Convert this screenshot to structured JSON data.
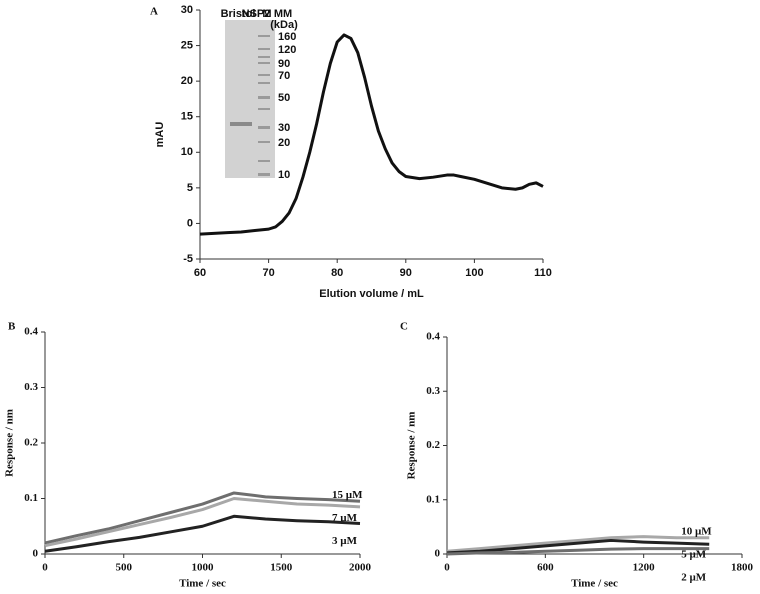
{
  "chart_data": [
    {
      "type": "line",
      "panel_label": "A",
      "xlabel": "Elution volume / mL",
      "ylabel": "mAU",
      "color": "#111111",
      "x": [
        60,
        62,
        64,
        66,
        68,
        70,
        71,
        72,
        73,
        74,
        75,
        76,
        77,
        78,
        79,
        80,
        81,
        82,
        83,
        84,
        85,
        86,
        87,
        88,
        89,
        90,
        92,
        94,
        96,
        97,
        98,
        100,
        102,
        104,
        106,
        107,
        108,
        109,
        110
      ],
      "values": [
        -1.5,
        -1.4,
        -1.3,
        -1.2,
        -1.0,
        -0.8,
        -0.5,
        0.3,
        1.5,
        3.5,
        6.5,
        10,
        14,
        18.5,
        22.5,
        25.5,
        26.5,
        26,
        24,
        20.5,
        16.5,
        13,
        10.5,
        8.5,
        7.3,
        6.6,
        6.3,
        6.5,
        6.8,
        6.8,
        6.6,
        6.2,
        5.6,
        5.0,
        4.8,
        5.0,
        5.5,
        5.7,
        5.2
      ],
      "xlim": [
        60,
        110
      ],
      "xticks": [
        60,
        70,
        80,
        90,
        100,
        110
      ],
      "ylim": [
        -5,
        30
      ],
      "yticks": [
        -5,
        0,
        5,
        10,
        15,
        20,
        25,
        30
      ],
      "inset": {
        "lane_labels": [
          "Bristol",
          "NSP2",
          "M",
          "MM"
        ],
        "unit_label": "(kDa)",
        "marker_labels": [
          160,
          120,
          90,
          70,
          50,
          30,
          20,
          10
        ]
      }
    },
    {
      "type": "line",
      "panel_label": "B",
      "xlabel": "Time / sec",
      "ylabel": "Response / nm",
      "x": [
        0,
        200,
        400,
        600,
        800,
        1000,
        1200,
        1400,
        1600,
        1800,
        2000
      ],
      "series": [
        {
          "name": "15 µM",
          "color": "#6e6e6e",
          "values": [
            0.02,
            0.033,
            0.045,
            0.06,
            0.075,
            0.09,
            0.11,
            0.103,
            0.1,
            0.098,
            0.095
          ]
        },
        {
          "name": "7 µM",
          "color": "#a8a8a8",
          "values": [
            0.015,
            0.027,
            0.04,
            0.053,
            0.066,
            0.08,
            0.1,
            0.095,
            0.09,
            0.088,
            0.085
          ]
        },
        {
          "name": "3 µM",
          "color": "#222222",
          "values": [
            0.005,
            0.013,
            0.022,
            0.03,
            0.04,
            0.05,
            0.068,
            0.063,
            0.06,
            0.058,
            0.055
          ]
        }
      ],
      "xlim": [
        0,
        2000
      ],
      "xticks": [
        0,
        500,
        1000,
        1500,
        2000
      ],
      "ylim": [
        0,
        0.4
      ],
      "yticks": [
        0,
        0.1,
        0.2,
        0.3,
        0.4
      ]
    },
    {
      "type": "line",
      "panel_label": "C",
      "xlabel": "Time / sec",
      "ylabel": "Response / nm",
      "x": [
        0,
        200,
        400,
        600,
        800,
        1000,
        1200,
        1400,
        1600
      ],
      "series": [
        {
          "name": "10 µM",
          "color": "#a8a8a8",
          "values": [
            0.005,
            0.01,
            0.015,
            0.02,
            0.025,
            0.03,
            0.032,
            0.03,
            0.03
          ]
        },
        {
          "name": "5 µM",
          "color": "#222222",
          "values": [
            0.002,
            0.005,
            0.01,
            0.015,
            0.02,
            0.025,
            0.022,
            0.02,
            0.018
          ]
        },
        {
          "name": "2 µM",
          "color": "#6e6e6e",
          "values": [
            0,
            0.002,
            0.003,
            0.005,
            0.007,
            0.009,
            0.01,
            0.01,
            0.01
          ]
        }
      ],
      "xlim": [
        0,
        1800
      ],
      "xticks": [
        0,
        600,
        1200,
        1800
      ],
      "ylim": [
        0,
        0.4
      ],
      "yticks": [
        0,
        0.1,
        0.2,
        0.3,
        0.4
      ]
    }
  ]
}
